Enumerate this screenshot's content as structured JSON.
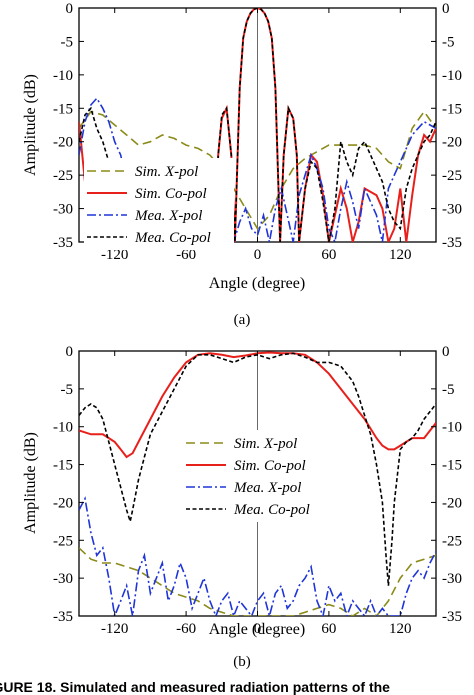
{
  "caption": "FIGURE 18. Simulated and measured radiation patterns of the",
  "chart_data": [
    {
      "type": "line",
      "sublabel": "(a)",
      "xlabel": "Angle (degree)",
      "ylabel": "Amplitude (dB)",
      "xlim": [
        -150,
        150
      ],
      "ylim": [
        -35,
        0
      ],
      "xticks": [
        -120,
        -60,
        0,
        60,
        120
      ],
      "yticks": [
        0,
        -5,
        -10,
        -15,
        -20,
        -25,
        -30,
        -35
      ],
      "legend_position": "left",
      "series": [
        {
          "name": "Sim. X-pol",
          "color": "#8b8b1a",
          "dash": "dash",
          "x": [
            -150,
            -140,
            -130,
            -120,
            -110,
            -100,
            -90,
            -80,
            -70,
            -60,
            -50,
            -40,
            -30,
            -20,
            -10,
            0,
            10,
            20,
            30,
            40,
            50,
            60,
            70,
            80,
            90,
            100,
            110,
            120,
            130,
            140,
            150
          ],
          "y": [
            -18,
            -15.5,
            -16,
            -17.5,
            -19,
            -20.5,
            -20,
            -19,
            -19.5,
            -20.5,
            -21,
            -22,
            -24,
            -27,
            -30,
            -33,
            -31,
            -27,
            -24,
            -22.5,
            -21.5,
            -20.5,
            -20.5,
            -20.5,
            -20.5,
            -21,
            -23,
            -24,
            -18,
            -15.5,
            -18
          ]
        },
        {
          "name": "Sim. Co-pol",
          "color": "#e8201c",
          "dash": "solid",
          "x": [
            -150,
            -140,
            -130,
            -120,
            -110,
            -100,
            -90,
            -80,
            -70,
            -60,
            -50,
            -40,
            -35,
            -33,
            -30,
            -26,
            -22,
            -19,
            -15,
            -12,
            -9,
            -6,
            -3,
            0,
            3,
            6,
            9,
            12,
            15,
            19,
            22,
            26,
            30,
            33,
            35,
            40,
            45,
            50,
            55,
            60,
            65,
            70,
            75,
            80,
            85,
            90,
            95,
            100,
            105,
            110,
            115,
            120,
            125,
            130,
            135,
            140,
            145,
            150
          ],
          "y": [
            -17,
            -35,
            -35,
            -35,
            -35,
            -35,
            -35,
            -35,
            -35,
            -35,
            -35,
            -35,
            -35,
            -22,
            -16.5,
            -15,
            -22,
            -35,
            -12,
            -4.5,
            -2,
            -0.8,
            -0.2,
            0,
            -0.2,
            -0.8,
            -2,
            -4.5,
            -12,
            -35,
            -22,
            -15,
            -16.5,
            -22,
            -35,
            -27,
            -22,
            -23,
            -28,
            -35,
            -31,
            -27,
            -30,
            -35,
            -32,
            -27,
            -27.5,
            -28,
            -30,
            -35,
            -33,
            -27,
            -35,
            -28,
            -22,
            -19,
            -20,
            -18
          ]
        },
        {
          "name": "Mea. X-pol",
          "color": "#1f35d8",
          "dash": "dashdot",
          "x": [
            -150,
            -145,
            -140,
            -135,
            -130,
            -125,
            -120,
            -115,
            -110,
            -105,
            -100,
            -95,
            -90,
            -85,
            -80,
            -75,
            -70,
            -65,
            -60,
            -55,
            -50,
            -45,
            -40,
            -35,
            -30,
            -25,
            -20,
            -15,
            -10,
            -5,
            0,
            5,
            10,
            15,
            20,
            25,
            30,
            35,
            40,
            45,
            50,
            55,
            60,
            65,
            70,
            75,
            80,
            85,
            90,
            95,
            100,
            105,
            110,
            115,
            120,
            125,
            130,
            135,
            140,
            145,
            150
          ],
          "y": [
            -22,
            -17,
            -14.5,
            -13.5,
            -15,
            -17,
            -20,
            -22,
            -26,
            -30,
            -33,
            -30,
            -28,
            -30,
            -33,
            -35,
            -35,
            -32,
            -35,
            -31,
            -35,
            -33,
            -30,
            -26,
            -28,
            -31,
            -35,
            -32,
            -30,
            -33,
            -34,
            -31,
            -35,
            -30,
            -27,
            -31,
            -35,
            -28,
            -25,
            -22,
            -24,
            -27,
            -33,
            -35,
            -30,
            -26,
            -29,
            -33,
            -27,
            -29,
            -31,
            -35,
            -27,
            -25,
            -23,
            -21,
            -19,
            -18,
            -17,
            -17.5,
            -18
          ]
        },
        {
          "name": "Mea. Co-pol",
          "color": "#000000",
          "dash": "shortdash",
          "x": [
            -150,
            -145,
            -140,
            -135,
            -130,
            -125,
            -120,
            -115,
            -110,
            -105,
            -100,
            -95,
            -90,
            -85,
            -80,
            -75,
            -70,
            -65,
            -60,
            -55,
            -50,
            -45,
            -40,
            -35,
            -33,
            -30,
            -26,
            -22,
            -19,
            -15,
            -12,
            -9,
            -6,
            -3,
            0,
            3,
            6,
            9,
            12,
            15,
            19,
            22,
            26,
            30,
            33,
            35,
            40,
            45,
            50,
            55,
            60,
            65,
            70,
            75,
            80,
            85,
            90,
            95,
            100,
            105,
            110,
            115,
            120,
            125,
            130,
            135,
            140,
            145,
            150
          ],
          "y": [
            -20,
            -16,
            -15,
            -18,
            -20,
            -23,
            -26,
            -28,
            -29,
            -30,
            -31,
            -32,
            -33,
            -34,
            -33,
            -32,
            -33,
            -31,
            -32,
            -33,
            -31,
            -30,
            -34,
            -35,
            -22,
            -16,
            -15,
            -22,
            -35,
            -12,
            -4.5,
            -2,
            -0.8,
            -0.2,
            0,
            -0.2,
            -0.8,
            -2,
            -4.5,
            -12,
            -35,
            -22,
            -15,
            -16.5,
            -22,
            -35,
            -27,
            -23,
            -24,
            -29,
            -35,
            -30,
            -20,
            -23,
            -25,
            -21,
            -20,
            -22,
            -24,
            -26,
            -30,
            -32,
            -33,
            -27,
            -24,
            -22,
            -20,
            -19,
            -17
          ]
        }
      ]
    },
    {
      "type": "line",
      "sublabel": "(b)",
      "xlabel": "Angle (degree)",
      "ylabel": "Amplitude (dB)",
      "xlim": [
        -150,
        150
      ],
      "ylim": [
        -35,
        0
      ],
      "xticks": [
        -120,
        -60,
        0,
        60,
        120
      ],
      "yticks": [
        0,
        -5,
        -10,
        -15,
        -20,
        -25,
        -30,
        -35
      ],
      "legend_position": "center",
      "series": [
        {
          "name": "Sim. X-pol",
          "color": "#8b8b1a",
          "dash": "dash",
          "x": [
            -150,
            -140,
            -130,
            -120,
            -110,
            -100,
            -90,
            -80,
            -70,
            -60,
            -50,
            -40,
            -30,
            -20,
            -10,
            0,
            10,
            20,
            30,
            40,
            50,
            60,
            70,
            80,
            90,
            100,
            110,
            120,
            130,
            140,
            150
          ],
          "y": [
            -26,
            -27.5,
            -28,
            -28,
            -28.5,
            -29,
            -30,
            -31,
            -32,
            -32.5,
            -33,
            -34,
            -34.5,
            -35,
            -35,
            -35,
            -35,
            -35,
            -35,
            -34.5,
            -34,
            -33.5,
            -34,
            -35,
            -34,
            -35,
            -33,
            -30,
            -28,
            -27.5,
            -27
          ]
        },
        {
          "name": "Sim. Co-pol",
          "color": "#e8201c",
          "dash": "solid",
          "x": [
            -150,
            -140,
            -130,
            -120,
            -115,
            -110,
            -105,
            -100,
            -90,
            -80,
            -70,
            -60,
            -50,
            -40,
            -30,
            -20,
            -10,
            0,
            10,
            20,
            30,
            40,
            50,
            60,
            70,
            80,
            90,
            100,
            105,
            110,
            115,
            120,
            130,
            140,
            150
          ],
          "y": [
            -10.5,
            -11,
            -11,
            -12,
            -13,
            -14,
            -13.5,
            -12,
            -9,
            -6,
            -3.5,
            -1.5,
            -0.5,
            -0.3,
            -0.5,
            -0.8,
            -0.6,
            -0.3,
            -0.2,
            -0.3,
            -0.3,
            -0.5,
            -1.5,
            -3,
            -5,
            -7,
            -9,
            -11.5,
            -12.5,
            -13,
            -13,
            -12.5,
            -11.5,
            -11.5,
            -9.5
          ]
        },
        {
          "name": "Mea. X-pol",
          "color": "#1f35d8",
          "dash": "dashdot",
          "x": [
            -150,
            -145,
            -140,
            -135,
            -130,
            -125,
            -120,
            -115,
            -110,
            -105,
            -100,
            -95,
            -90,
            -85,
            -80,
            -75,
            -70,
            -65,
            -60,
            -55,
            -50,
            -45,
            -40,
            -35,
            -30,
            -25,
            -20,
            -15,
            -10,
            -5,
            0,
            5,
            10,
            15,
            20,
            25,
            30,
            35,
            40,
            45,
            50,
            55,
            60,
            65,
            70,
            75,
            80,
            85,
            90,
            95,
            100,
            105,
            110,
            115,
            120,
            125,
            130,
            135,
            140,
            145,
            150
          ],
          "y": [
            -21,
            -19.5,
            -24,
            -27,
            -26,
            -30,
            -35,
            -33,
            -31,
            -35,
            -29,
            -27,
            -32,
            -30,
            -28,
            -33,
            -31,
            -28,
            -30,
            -34,
            -32,
            -30,
            -33,
            -35,
            -33,
            -32,
            -35,
            -33,
            -34,
            -35,
            -33,
            -32,
            -35,
            -32,
            -31,
            -34,
            -33,
            -31,
            -30,
            -28.5,
            -33,
            -35,
            -31,
            -33,
            -32,
            -35,
            -33,
            -34,
            -35,
            -33,
            -35,
            -34,
            -35,
            -35,
            -35,
            -32,
            -30,
            -29,
            -30,
            -28,
            -26.5
          ]
        },
        {
          "name": "Mea. Co-pol",
          "color": "#000000",
          "dash": "shortdash",
          "x": [
            -150,
            -145,
            -140,
            -135,
            -130,
            -125,
            -120,
            -115,
            -110,
            -107,
            -105,
            -100,
            -95,
            -90,
            -80,
            -70,
            -60,
            -50,
            -40,
            -30,
            -20,
            -10,
            0,
            10,
            20,
            30,
            40,
            50,
            60,
            70,
            80,
            85,
            90,
            95,
            100,
            105,
            108,
            110,
            113,
            115,
            120,
            125,
            130,
            135,
            140,
            145,
            150
          ],
          "y": [
            -8.5,
            -7.5,
            -7,
            -7.5,
            -9,
            -12,
            -15,
            -18,
            -21,
            -22.5,
            -21,
            -17,
            -14,
            -11,
            -8,
            -5,
            -2,
            -0.5,
            -0.5,
            -1,
            -1.5,
            -0.8,
            -0.5,
            -1,
            -0.5,
            -0.3,
            -0.8,
            -1.5,
            -1.5,
            -2,
            -4,
            -6,
            -8.5,
            -11,
            -15,
            -20,
            -27,
            -31,
            -25,
            -20,
            -13,
            -12,
            -11.5,
            -10.5,
            -9,
            -8,
            -7
          ]
        }
      ]
    }
  ]
}
